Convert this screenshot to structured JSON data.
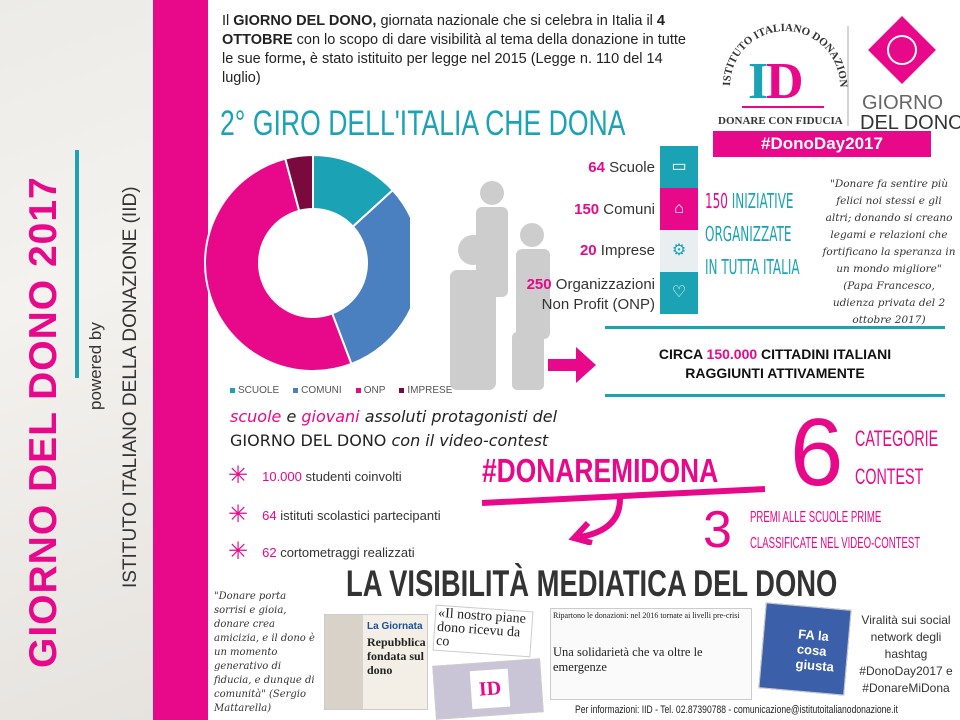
{
  "side": {
    "title": "GIORNO DEL DONO 2017",
    "powered": "powered by",
    "institute": "ISTITUTO ITALIANO DELLA DONAZIONE (IID)"
  },
  "intro": {
    "p1": "Il ",
    "b1": "GIORNO DEL DONO,",
    "p2": " giornata nazionale che si celebra in Italia il ",
    "b2": "4 OTTOBRE",
    "p3": " con lo scopo di dare visibilità al tema della donazione in tutte le sue forme",
    "b3": ",",
    "p4": " è stato istituito per legge nel 2015 (Legge n. 110 del 14 luglio)"
  },
  "giro_title": "2° GIRO DELL'ITALIA CHE DONA",
  "logo": {
    "arc": "ISTITUTO ITALIANO DONAZIONE",
    "mono": "ID",
    "tagline": "DONARE CON FIDUCIA",
    "giorno": "GIORNO",
    "deldono": "DEL DONO",
    "hashtag": "#DonoDay2017"
  },
  "chart_data": {
    "type": "pie",
    "donut": true,
    "categories": [
      "SCUOLE",
      "COMUNI",
      "ONP",
      "IMPRESE"
    ],
    "values": [
      64,
      150,
      250,
      20
    ],
    "colors": [
      "#1ba3b5",
      "#4a7fc0",
      "#e8088a",
      "#7a0a3e"
    ],
    "legend": "bottom"
  },
  "stats": [
    {
      "num": "64",
      "label": " Scuole",
      "icon": "book-icon",
      "color": "#1ba3b5"
    },
    {
      "num": "150",
      "label": " Comuni",
      "icon": "building-icon",
      "color": "#e8088a"
    },
    {
      "num": "20",
      "label": " Imprese",
      "icon": "gears-icon",
      "color": "#e9eef0"
    },
    {
      "num": "250",
      "label": " Organizzazioni",
      "label2": "Non Profit (ONP)",
      "icon": "heart-icon",
      "color": "#1ba3b5"
    }
  ],
  "iniziative": {
    "num": "150",
    "l1": " INIZIATIVE",
    "l2": "ORGANIZZATE",
    "l3": "IN TUTTA ITALIA"
  },
  "quote1": "\"Donare fa sentire più felici noi stessi e gli altri; donando si creano legami e relazioni che fortificano la speranza in un mondo migliore\" (Papa Francesco, udienza privata del 2 ottobre 2017)",
  "circa": {
    "a": "CIRCA ",
    "num": "150.000",
    "b": " CITTADINI ITALIANI",
    "c": "RAGGIUNTI ATTIVAMENTE"
  },
  "protag": {
    "p1": "scuole",
    "p2": " e ",
    "p3": "giovani",
    "p4": " assoluti protagonisti del",
    "p5": "GIORNO DEL DONO",
    "p6": " con il video-contest"
  },
  "bullets": [
    {
      "num": "10.000",
      "text": " studenti coinvolti"
    },
    {
      "num": "64",
      "text": " istituti scolastici partecipanti"
    },
    {
      "num": "62",
      "text": " cortometraggi realizzati"
    }
  ],
  "contest": {
    "hashtag": "#DONAREMIDONA",
    "six": "6",
    "cat1": "CATEGORIE",
    "cat2": "CONTEST",
    "three": "3",
    "premi1": "PREMI ALLE SCUOLE PRIME",
    "premi2": "CLASSIFICATE NEL VIDEO-CONTEST"
  },
  "visib_title": "LA VISIBILITÀ MEDIATICA DEL DONO",
  "quote2": "\"Donare porta sorrisi e gioia, donare crea amicizia, e il dono è un momento generativo di fiducia, e dunque di comunità\" (Sergio Mattarella)",
  "clips": {
    "c1a": "La Giornata",
    "c1b": "Repubblica fondata sul dono",
    "c2": "«Il nostro piane dono ricevu da co",
    "c3a": "Ripartono le donazioni: nel 2016 tornate ai livelli pre-crisi",
    "c3b": "Una solidarietà che va oltre le emergenze",
    "c4": "FA la cosa giusta"
  },
  "viral": "Viralità sui social network degli hashtag #DonoDay2017 e #DonareMiDona",
  "footer": "Per informazioni: IID - Tel. 02.87390788 - comunicazione@istitutoitalianodonazione.it"
}
